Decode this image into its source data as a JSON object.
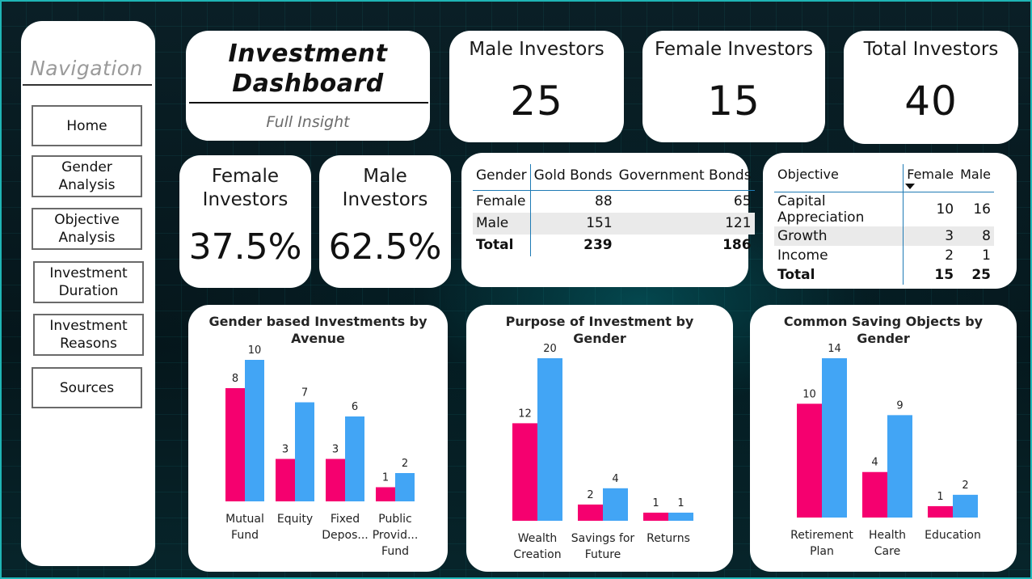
{
  "nav": {
    "title": "Navigation",
    "buttons": [
      "Home",
      "Gender\nAnalysis",
      "Objective\nAnalysis",
      "Investment\nDuration",
      "Investment\nReasons",
      "Sources"
    ]
  },
  "header": {
    "title": "Investment\nDashboard",
    "subtitle": "Full Insight"
  },
  "kpis": [
    {
      "label": "Male Investors",
      "value": "25"
    },
    {
      "label": "Female Investors",
      "value": "15"
    },
    {
      "label": "Total Investors",
      "value": "40"
    }
  ],
  "percent_cards": [
    {
      "label": "Female\nInvestors",
      "value": "37.5%"
    },
    {
      "label": "Male\nInvestors",
      "value": "62.5%"
    }
  ],
  "bonds_table": {
    "headers": [
      "Gender",
      "Gold Bonds",
      "Government Bonds"
    ],
    "rows": [
      [
        "Female",
        "88",
        "65"
      ],
      [
        "Male",
        "151",
        "121"
      ],
      [
        "Total",
        "239",
        "186"
      ]
    ]
  },
  "objective_table": {
    "headers": [
      "Objective",
      "Female",
      "Male"
    ],
    "rows": [
      [
        "Capital Appreciation",
        "10",
        "16"
      ],
      [
        "Growth",
        "3",
        "8"
      ],
      [
        "Income",
        "2",
        "1"
      ],
      [
        "Total",
        "15",
        "25"
      ]
    ]
  },
  "colors": {
    "female": "#f5006f",
    "male": "#42a5f5",
    "accent": "#1fb7b7"
  },
  "chart_data": [
    {
      "type": "bar",
      "title": "Gender based Investments by\nAvenue",
      "categories": [
        "Mutual\nFund",
        "Equity",
        "Fixed\nDepos...",
        "Public\nProvid...\nFund"
      ],
      "series": [
        {
          "values": [
            8,
            3,
            3,
            1
          ]
        },
        {
          "values": [
            10,
            7,
            6,
            2
          ]
        }
      ]
    },
    {
      "type": "bar",
      "title": "Purpose of Investment by Gender",
      "categories": [
        "Wealth\nCreation",
        "Savings for\nFuture",
        "Returns"
      ],
      "series": [
        {
          "values": [
            12,
            2,
            1
          ]
        },
        {
          "values": [
            20,
            4,
            1
          ]
        }
      ]
    },
    {
      "type": "bar",
      "title": "Common Saving Objects by Gender",
      "categories": [
        "Retirement\nPlan",
        "Health\nCare",
        "Education"
      ],
      "series": [
        {
          "values": [
            10,
            4,
            1
          ]
        },
        {
          "values": [
            14,
            9,
            2
          ]
        }
      ]
    }
  ]
}
